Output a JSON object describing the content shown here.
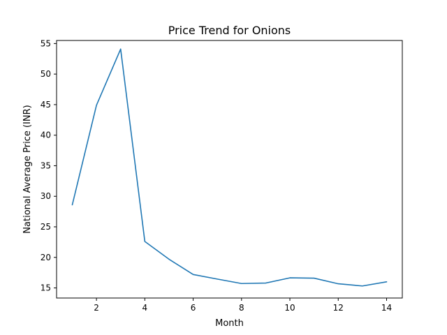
{
  "chart_data": {
    "type": "line",
    "title": "Price Trend for Onions",
    "xlabel": "Month",
    "ylabel": "National Average Price (INR)",
    "xlim": [
      0.35,
      14.65
    ],
    "ylim": [
      13.35,
      55.5
    ],
    "xticks": [
      2,
      4,
      6,
      8,
      10,
      12,
      14
    ],
    "yticks": [
      15,
      20,
      25,
      30,
      35,
      40,
      45,
      50,
      55
    ],
    "grid": false,
    "series": [
      {
        "color": "#1f77b4",
        "x": [
          1,
          2,
          3,
          4,
          5,
          6,
          7,
          8,
          9,
          10,
          11,
          12,
          13,
          14
        ],
        "values": [
          28.6,
          44.9,
          54.1,
          22.6,
          19.7,
          17.2,
          16.45,
          15.72,
          15.8,
          16.65,
          16.6,
          15.68,
          15.32,
          16.0
        ]
      }
    ]
  }
}
